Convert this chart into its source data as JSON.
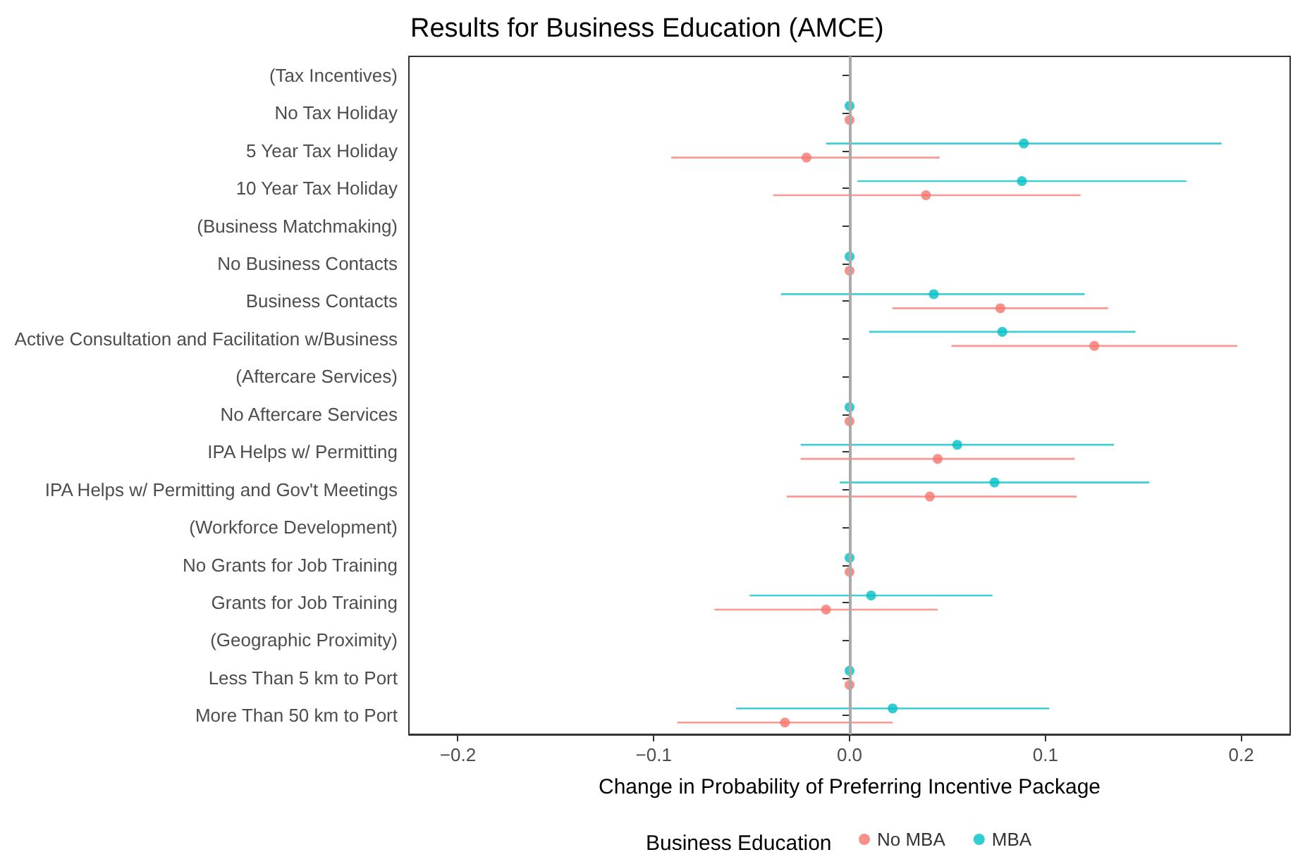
{
  "chart_data": {
    "type": "scatter",
    "title": "Results for Business Education (AMCE)",
    "xlabel": "Change in Probability of Preferring Incentive Package",
    "legend_title": "Business Education",
    "legend": "bottom",
    "grid": false,
    "marker": "circle",
    "categories": [
      "(Tax Incentives)",
      "No Tax Holiday",
      "5 Year Tax Holiday",
      "10 Year Tax Holiday",
      "(Business Matchmaking)",
      "No Business Contacts",
      "Business Contacts",
      "Active Consultation and Facilitation w/Business",
      "(Aftercare Services)",
      "No Aftercare Services",
      "IPA Helps w/ Permitting",
      "IPA Helps w/ Permitting and Gov't Meetings",
      "(Workforce Development)",
      "No Grants for Job Training",
      "Grants for Job Training",
      "(Geographic Proximity)",
      "Less Than 5 km to Port",
      "More Than 50 km to Port"
    ],
    "orientation": "horizontal",
    "xlim": [
      -0.225,
      0.225
    ],
    "xticks": [
      {
        "value": -0.2,
        "label": "−0.2"
      },
      {
        "value": -0.1,
        "label": "−0.1"
      },
      {
        "value": 0,
        "label": "0.0"
      },
      {
        "value": 0.1,
        "label": "0.1"
      },
      {
        "value": 0.2,
        "label": "0.2"
      }
    ],
    "ref_lines": [
      {
        "axis": "x",
        "value": 0,
        "color": "#aaaaaa"
      }
    ],
    "series": [
      {
        "name": "No MBA",
        "color": "#f8766d",
        "values": [
          null,
          0,
          -0.022,
          0.039,
          null,
          0,
          0.077,
          0.125,
          null,
          0,
          0.045,
          0.041,
          null,
          0,
          -0.012,
          null,
          0,
          -0.033
        ],
        "errors": [
          null,
          null,
          [
            -0.091,
            0.046
          ],
          [
            -0.039,
            0.118
          ],
          null,
          null,
          [
            0.022,
            0.132
          ],
          [
            0.052,
            0.198
          ],
          null,
          null,
          [
            -0.025,
            0.115
          ],
          [
            -0.032,
            0.116
          ],
          null,
          null,
          [
            -0.069,
            0.045
          ],
          null,
          null,
          [
            -0.088,
            0.022
          ]
        ]
      },
      {
        "name": "MBA",
        "color": "#00bfc4",
        "values": [
          null,
          0,
          0.089,
          0.088,
          null,
          0,
          0.043,
          0.078,
          null,
          0,
          0.055,
          0.074,
          null,
          0,
          0.011,
          null,
          0,
          0.022
        ],
        "errors": [
          null,
          null,
          [
            -0.012,
            0.19
          ],
          [
            0.004,
            0.172
          ],
          null,
          null,
          [
            -0.035,
            0.12
          ],
          [
            0.01,
            0.146
          ],
          null,
          null,
          [
            -0.025,
            0.135
          ],
          [
            -0.005,
            0.153
          ],
          null,
          null,
          [
            -0.051,
            0.073
          ],
          null,
          null,
          [
            -0.058,
            0.102
          ]
        ]
      }
    ]
  }
}
